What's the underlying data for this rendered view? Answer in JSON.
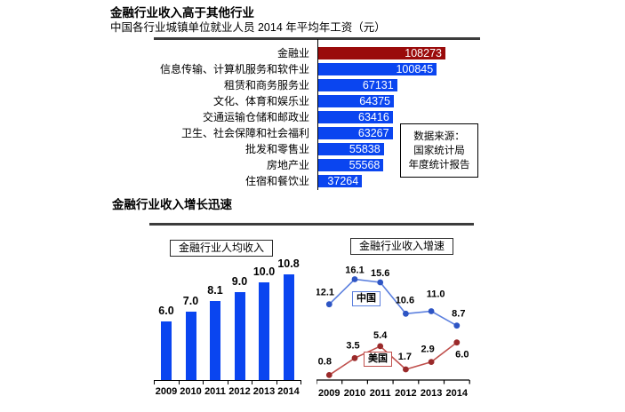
{
  "section1": {
    "title": "金融行业收入高于其他行业",
    "subtitle": "中国各行业城镇单位就业人员 2014 年平均年工资（元）"
  },
  "section2": {
    "title": "金融行业收入增长迅速"
  },
  "source_box": {
    "lines": [
      "数据来源：",
      "国家统计局",
      "年度统计报告"
    ]
  },
  "colors": {
    "bar_red": "#9A0B0B",
    "bar_blue": "#0A45F0",
    "china_line": "#5B7FDE",
    "china_marker": "#2E55C4",
    "usa_line": "#C0504D",
    "usa_marker": "#9A2A2A",
    "axis": "#000000"
  },
  "chart_data": [
    {
      "type": "bar",
      "orientation": "horizontal",
      "title": "中国各行业城镇单位就业人员 2014 年平均年工资（元）",
      "categories": [
        "金融业",
        "信息传输、计算机服务和软件业",
        "租赁和商务服务业",
        "文化、体育和娱乐业",
        "交通运输仓储和邮政业",
        "卫生、社会保障和社会福利",
        "批发和零售业",
        "房地产业",
        "住宿和餐饮业"
      ],
      "values": [
        108273,
        100845,
        67131,
        64375,
        63416,
        63267,
        55838,
        55568,
        37264
      ],
      "xlim": [
        0,
        110000
      ],
      "value_labels": "inside-end, white",
      "highlight_first_bar": true,
      "legend": "off",
      "grid": "off"
    },
    {
      "type": "bar",
      "title": "金融行业人均收入",
      "categories": [
        "2009",
        "2010",
        "2011",
        "2012",
        "2013",
        "2014"
      ],
      "values": [
        6.0,
        7.0,
        8.1,
        9.0,
        10.0,
        10.8
      ],
      "labels": [
        "6.0",
        "7.0",
        "8.1",
        "9.0",
        "10.0",
        "10.8"
      ],
      "ylim": [
        0,
        12
      ],
      "legend": "off",
      "grid": "off"
    },
    {
      "type": "line",
      "title": "金融行业收入增速",
      "categories": [
        "2009",
        "2010",
        "2011",
        "2012",
        "2013",
        "2014"
      ],
      "series": [
        {
          "name": "中国",
          "values": [
            12.1,
            16.1,
            15.6,
            10.6,
            11.0,
            8.7
          ],
          "labels": [
            "12.1",
            "16.1",
            "15.6",
            "10.6",
            "11.0",
            "8.7"
          ]
        },
        {
          "name": "美国",
          "values": [
            0.8,
            3.5,
            5.4,
            1.7,
            2.9,
            6.0
          ],
          "labels": [
            "0.8",
            "3.5",
            "5.4",
            "1.7",
            "2.9",
            "6.0"
          ]
        }
      ],
      "ylim": [
        0,
        18
      ],
      "legend": "inline boxed labels",
      "grid": "off"
    }
  ]
}
